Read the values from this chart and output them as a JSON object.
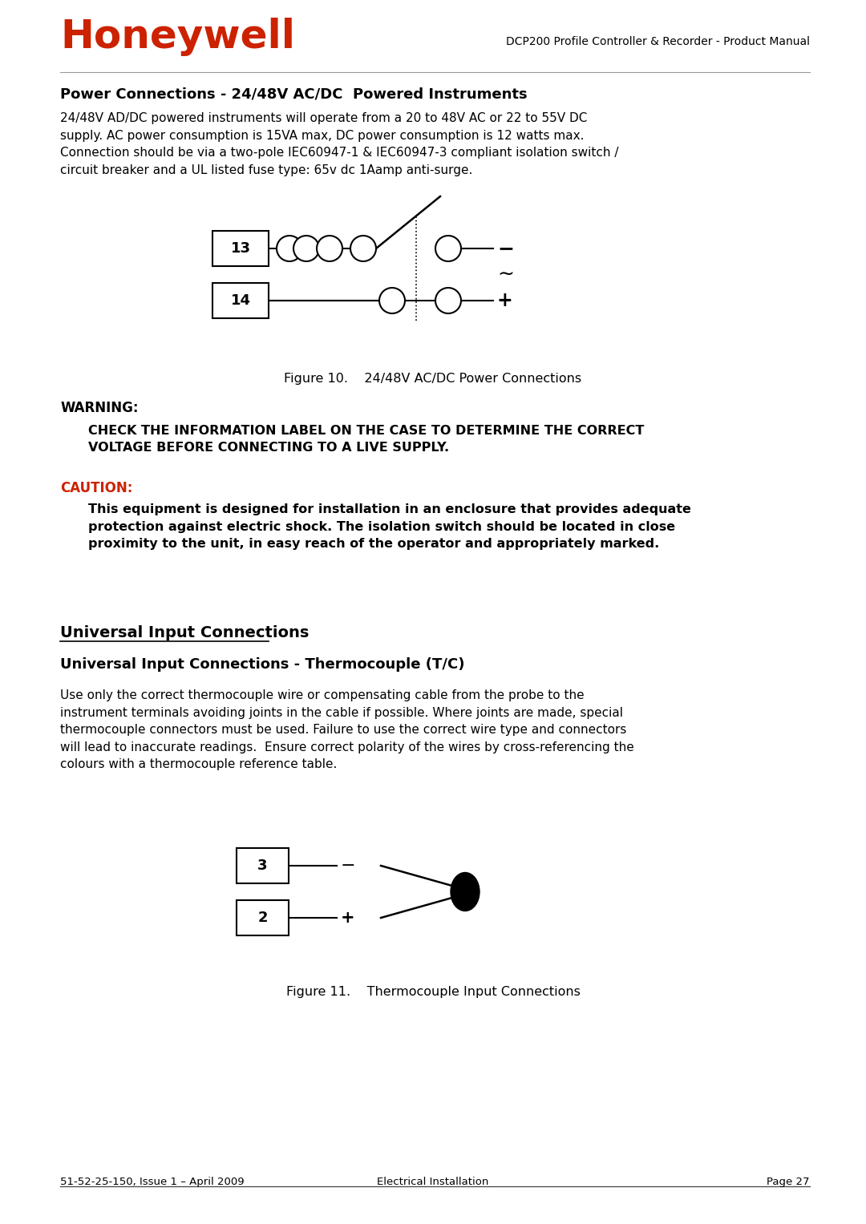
{
  "page_width": 10.8,
  "page_height": 15.27,
  "bg_color": "#ffffff",
  "honeywell_color": "#cc2200",
  "header_title": "DCP200 Profile Controller & Recorder - Product Manual",
  "section1_title": "Power Connections - 24/48V AC/DC  Powered Instruments",
  "section1_body": "24/48V AD/DC powered instruments will operate from a 20 to 48V AC or 22 to 55V DC\nsupply. AC power consumption is 15VA max, DC power consumption is 12 watts max.\nConnection should be via a two-pole IEC60947-1 & IEC60947-3 compliant isolation switch /\ncircuit breaker and a UL listed fuse type: 65v dc 1Aamp anti-surge.",
  "warning_label": "WARNING:",
  "warning_body": "CHECK THE INFORMATION LABEL ON THE CASE TO DETERMINE THE CORRECT\nVOLTAGE BEFORE CONNECTING TO A LIVE SUPPLY.",
  "caution_label": "CAUTION:",
  "caution_body": "This equipment is designed for installation in an enclosure that provides adequate\nprotection against electric shock. The isolation switch should be located in close\nproximity to the unit, in easy reach of the operator and appropriately marked.",
  "fig10_caption": "Figure 10.    24/48V AC/DC Power Connections",
  "section2_title": "Universal Input Connections",
  "section3_title": "Universal Input Connections - Thermocouple (T/C)",
  "section3_body": "Use only the correct thermocouple wire or compensating cable from the probe to the\ninstrument terminals avoiding joints in the cable if possible. Where joints are made, special\nthermocouple connectors must be used. Failure to use the correct wire type and connectors\nwill lead to inaccurate readings.  Ensure correct polarity of the wires by cross-referencing the\ncolours with a thermocouple reference table.",
  "fig11_caption": "Figure 11.    Thermocouple Input Connections",
  "footer_left": "51-52-25-150, Issue 1 – April 2009",
  "footer_center": "Electrical Installation",
  "footer_right": "Page 27",
  "caution_color": "#cc2200",
  "text_color": "#000000",
  "line_color": "#000000"
}
